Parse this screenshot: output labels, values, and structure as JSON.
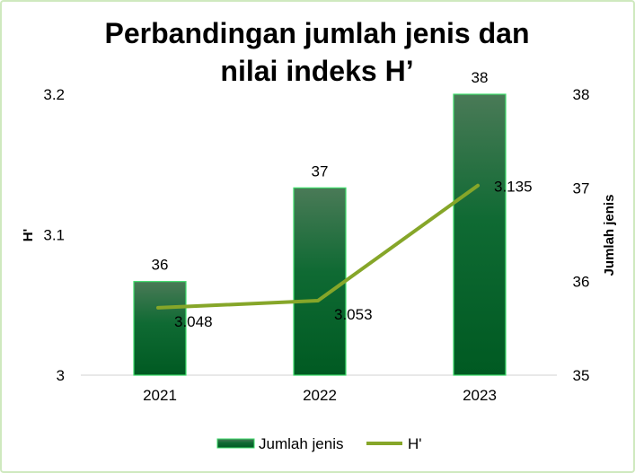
{
  "chart_data": {
    "type": "bar+line",
    "title_lines": [
      "Perbandingan jumlah jenis dan",
      "nilai indeks H’"
    ],
    "categories": [
      "2021",
      "2022",
      "2023"
    ],
    "series": [
      {
        "name": "Jumlah jenis",
        "kind": "bar",
        "axis": "right",
        "values": [
          36,
          37,
          38
        ],
        "color": "#00652a"
      },
      {
        "name": "H'",
        "kind": "line",
        "axis": "left",
        "values": [
          3.048,
          3.053,
          3.135
        ],
        "color": "#86a629"
      }
    ],
    "left_axis": {
      "title": "H'",
      "ylim": [
        3,
        3.2
      ],
      "ticks": [
        "3",
        "3.1",
        "3.2"
      ]
    },
    "right_axis": {
      "title": "Jumlah jenis",
      "ylim": [
        35,
        38
      ],
      "ticks": [
        "35",
        "36",
        "37",
        "38"
      ]
    },
    "grid": false,
    "legend_position": "bottom"
  }
}
